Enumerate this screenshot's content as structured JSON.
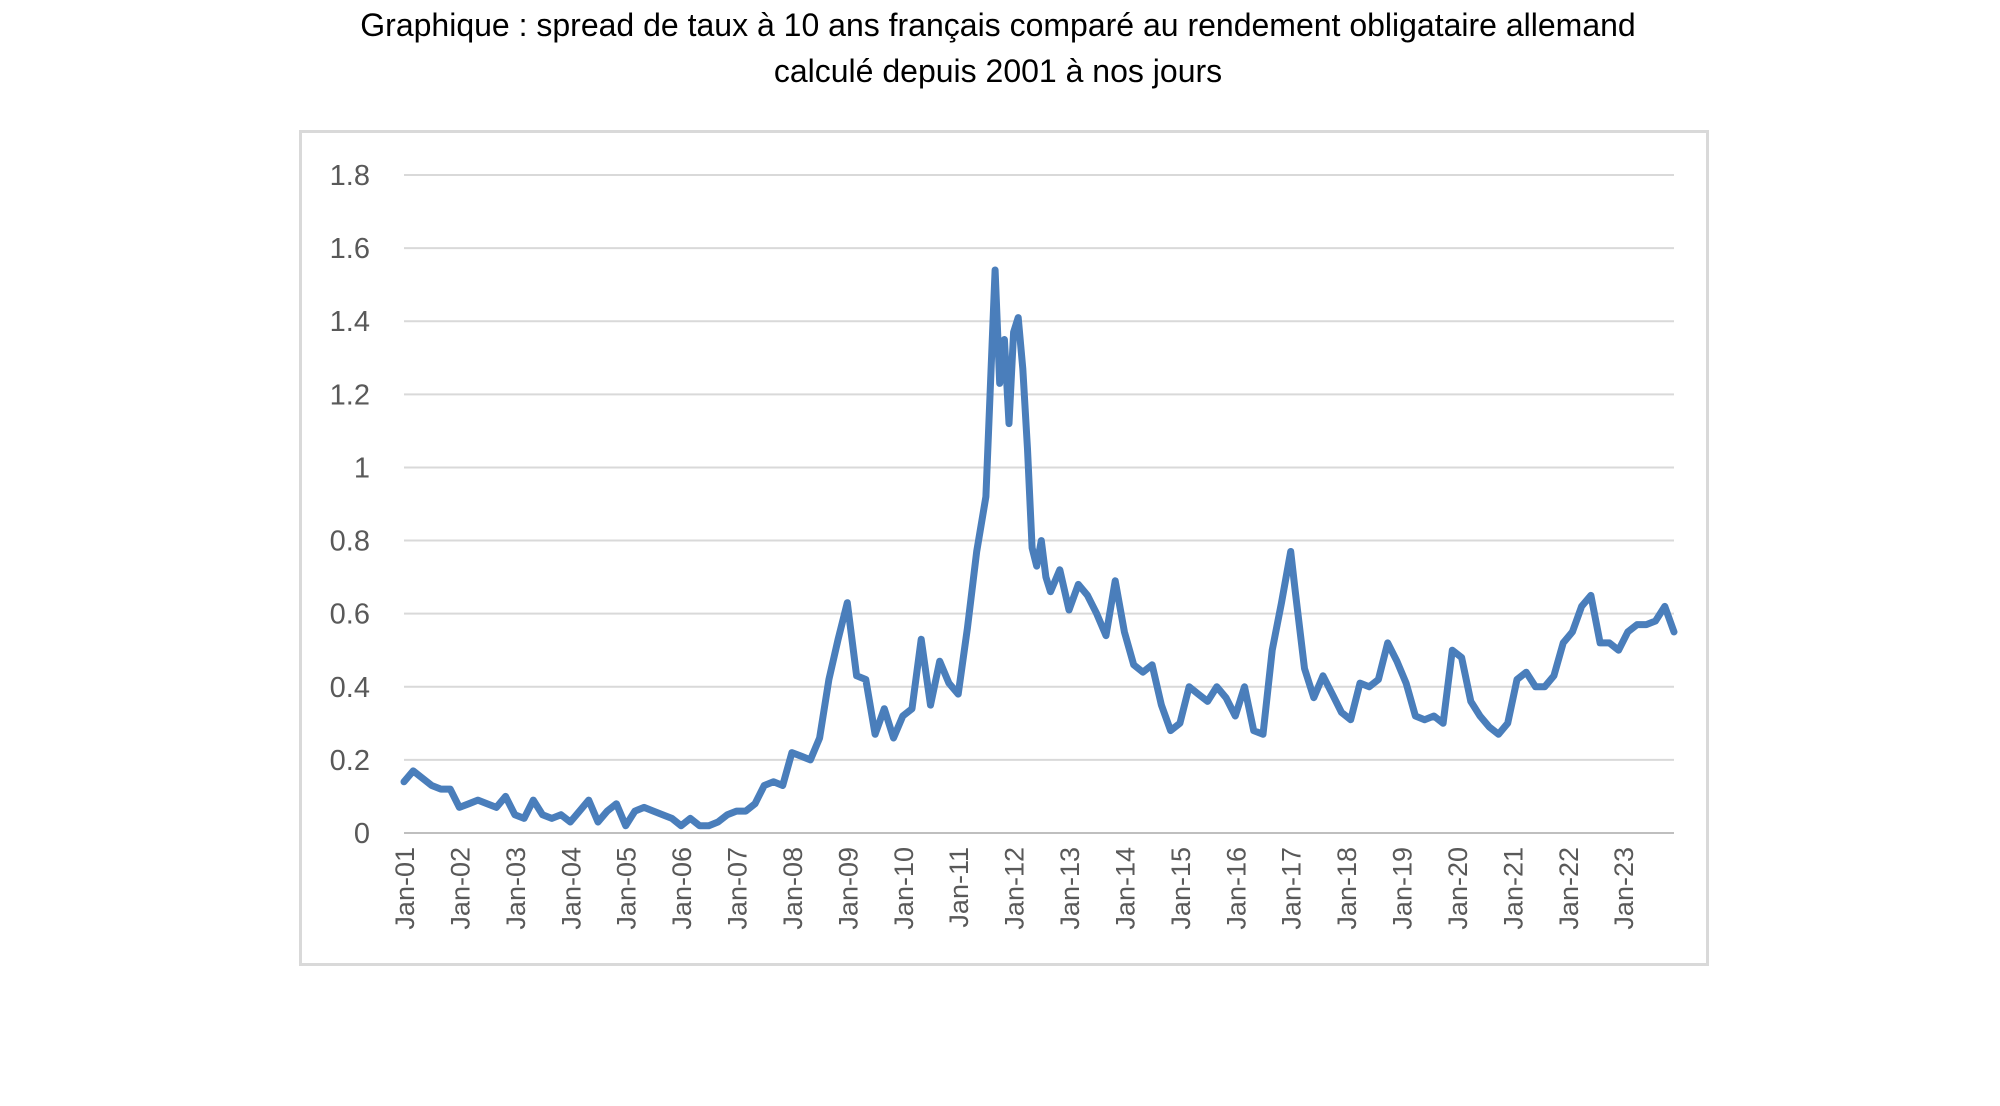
{
  "title": {
    "line1": "Graphique : spread de taux à 10 ans français comparé au rendement obligataire allemand",
    "line2": "calculé depuis 2001 à nos jours"
  },
  "chart_data": {
    "type": "line",
    "title": "Graphique : spread de taux à 10 ans français comparé au rendement obligataire allemand calculé depuis 2001 à nos jours",
    "xlabel": "",
    "ylabel": "",
    "ylim": [
      0,
      1.8
    ],
    "y_ticks": [
      "0",
      "0.2",
      "0.4",
      "0.6",
      "0.8",
      "1",
      "1.2",
      "1.4",
      "1.6",
      "1.8"
    ],
    "x_tick_labels": [
      "Jan-01",
      "Jan-02",
      "Jan-03",
      "Jan-04",
      "Jan-05",
      "Jan-06",
      "Jan-07",
      "Jan-08",
      "Jan-09",
      "Jan-10",
      "Jan-11",
      "Jan-12",
      "Jan-13",
      "Jan-14",
      "Jan-15",
      "Jan-16",
      "Jan-17",
      "Jan-18",
      "Jan-19",
      "Jan-20",
      "Jan-21",
      "Jan-22",
      "Jan-23"
    ],
    "x_start": "2001-01",
    "x_end": "2023-12",
    "grid": true,
    "line_color": "#4a7ebb",
    "series": [
      {
        "name": "",
        "x": [
          "2001-01",
          "2001-03",
          "2001-05",
          "2001-07",
          "2001-09",
          "2001-11",
          "2002-01",
          "2002-03",
          "2002-05",
          "2002-07",
          "2002-09",
          "2002-11",
          "2003-01",
          "2003-03",
          "2003-05",
          "2003-07",
          "2003-09",
          "2003-11",
          "2004-01",
          "2004-03",
          "2004-05",
          "2004-07",
          "2004-09",
          "2004-11",
          "2005-01",
          "2005-03",
          "2005-05",
          "2005-07",
          "2005-09",
          "2005-11",
          "2006-01",
          "2006-03",
          "2006-05",
          "2006-07",
          "2006-09",
          "2006-11",
          "2007-01",
          "2007-03",
          "2007-05",
          "2007-07",
          "2007-09",
          "2007-11",
          "2008-01",
          "2008-03",
          "2008-05",
          "2008-07",
          "2008-09",
          "2008-11",
          "2009-01",
          "2009-03",
          "2009-05",
          "2009-07",
          "2009-09",
          "2009-11",
          "2010-01",
          "2010-03",
          "2010-05",
          "2010-07",
          "2010-09",
          "2010-11",
          "2011-01",
          "2011-03",
          "2011-05",
          "2011-07",
          "2011-09",
          "2011-10",
          "2011-11",
          "2011-12",
          "2012-01",
          "2012-02",
          "2012-03",
          "2012-04",
          "2012-05",
          "2012-06",
          "2012-07",
          "2012-08",
          "2012-09",
          "2012-11",
          "2013-01",
          "2013-03",
          "2013-05",
          "2013-07",
          "2013-09",
          "2013-11",
          "2014-01",
          "2014-03",
          "2014-05",
          "2014-07",
          "2014-09",
          "2014-11",
          "2015-01",
          "2015-03",
          "2015-05",
          "2015-07",
          "2015-09",
          "2015-11",
          "2016-01",
          "2016-03",
          "2016-05",
          "2016-07",
          "2016-09",
          "2016-11",
          "2017-01",
          "2017-02",
          "2017-04",
          "2017-06",
          "2017-08",
          "2017-10",
          "2017-12",
          "2018-02",
          "2018-04",
          "2018-06",
          "2018-08",
          "2018-10",
          "2018-12",
          "2019-02",
          "2019-04",
          "2019-06",
          "2019-08",
          "2019-10",
          "2019-12",
          "2020-02",
          "2020-04",
          "2020-06",
          "2020-08",
          "2020-10",
          "2020-12",
          "2021-02",
          "2021-04",
          "2021-06",
          "2021-08",
          "2021-10",
          "2021-12",
          "2022-02",
          "2022-04",
          "2022-06",
          "2022-08",
          "2022-10",
          "2022-12",
          "2023-02",
          "2023-04",
          "2023-06",
          "2023-08",
          "2023-10",
          "2023-12"
        ],
        "values": [
          0.14,
          0.17,
          0.15,
          0.13,
          0.12,
          0.12,
          0.07,
          0.08,
          0.09,
          0.08,
          0.07,
          0.1,
          0.05,
          0.04,
          0.09,
          0.05,
          0.04,
          0.05,
          0.03,
          0.06,
          0.09,
          0.03,
          0.06,
          0.08,
          0.02,
          0.06,
          0.07,
          0.06,
          0.05,
          0.04,
          0.02,
          0.04,
          0.02,
          0.02,
          0.03,
          0.05,
          0.06,
          0.06,
          0.08,
          0.13,
          0.14,
          0.13,
          0.22,
          0.21,
          0.2,
          0.26,
          0.42,
          0.53,
          0.63,
          0.43,
          0.42,
          0.27,
          0.34,
          0.26,
          0.32,
          0.34,
          0.53,
          0.35,
          0.47,
          0.41,
          0.38,
          0.56,
          0.77,
          0.92,
          1.54,
          1.23,
          1.35,
          1.12,
          1.37,
          1.41,
          1.27,
          1.05,
          0.78,
          0.73,
          0.8,
          0.7,
          0.66,
          0.72,
          0.61,
          0.68,
          0.65,
          0.6,
          0.54,
          0.69,
          0.55,
          0.46,
          0.44,
          0.46,
          0.35,
          0.28,
          0.3,
          0.4,
          0.38,
          0.36,
          0.4,
          0.37,
          0.32,
          0.4,
          0.28,
          0.27,
          0.5,
          0.63,
          0.77,
          0.66,
          0.45,
          0.37,
          0.43,
          0.38,
          0.33,
          0.31,
          0.41,
          0.4,
          0.42,
          0.52,
          0.47,
          0.41,
          0.32,
          0.31,
          0.32,
          0.3,
          0.5,
          0.48,
          0.36,
          0.32,
          0.29,
          0.27,
          0.3,
          0.42,
          0.44,
          0.4,
          0.4,
          0.43,
          0.52,
          0.55,
          0.62,
          0.65,
          0.52,
          0.52,
          0.5,
          0.55,
          0.57,
          0.57,
          0.58,
          0.62,
          0.55
        ]
      }
    ]
  }
}
